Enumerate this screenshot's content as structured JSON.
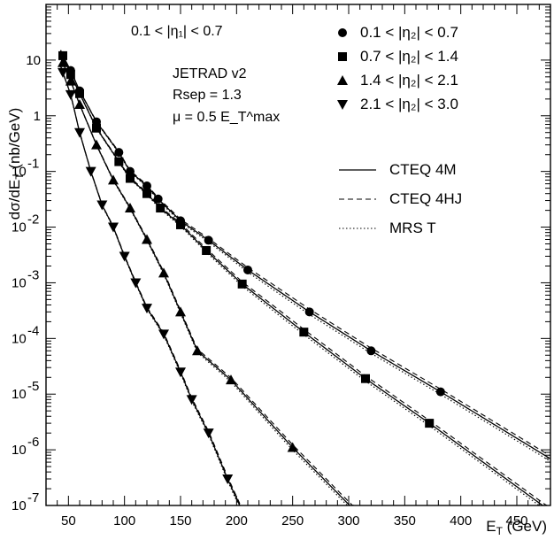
{
  "chart_data": {
    "type": "scatter",
    "title": "",
    "xlabel": "E_T (GeV)",
    "ylabel": "dσ/dE_T (nb/GeV)",
    "xlim": [
      30,
      480
    ],
    "ylim": [
      1e-07,
      100
    ],
    "yscale": "log",
    "grid": false,
    "x_ticks": [
      50,
      100,
      150,
      200,
      250,
      300,
      350,
      400,
      450
    ],
    "y_ticks": [
      {
        "value": 1e-07,
        "base": "10",
        "exp": "-7"
      },
      {
        "value": 1e-06,
        "base": "10",
        "exp": "-6"
      },
      {
        "value": 1e-05,
        "base": "10",
        "exp": "-5"
      },
      {
        "value": 0.0001,
        "base": "10",
        "exp": "-4"
      },
      {
        "value": 0.001,
        "base": "10",
        "exp": "-3"
      },
      {
        "value": 0.01,
        "base": "10",
        "exp": "-2"
      },
      {
        "value": 0.1,
        "base": "10",
        "exp": "-1"
      },
      {
        "value": 1,
        "base": "1",
        "exp": ""
      },
      {
        "value": 10,
        "base": "10",
        "exp": ""
      }
    ],
    "annotations": {
      "eta1_range": "0.1 < |η₁| < 0.7",
      "program": "JETRAD v2",
      "rsep": "Rsep = 1.3",
      "scale": "μ = 0.5 E_T^max"
    },
    "legend_position": "top-right",
    "series": [
      {
        "name": "0.1 < |η₂| < 0.7",
        "marker": "circle",
        "x": [
          45,
          52,
          60,
          75,
          95,
          105,
          120,
          130,
          150,
          175,
          210,
          265,
          320,
          382
        ],
        "y": [
          12,
          6.5,
          2.8,
          0.78,
          0.22,
          0.1,
          0.055,
          0.032,
          0.013,
          0.0058,
          0.0017,
          0.0003,
          6e-05,
          1.1e-05
        ]
      },
      {
        "name": "0.7 < |η₂| < 1.4",
        "marker": "square",
        "x": [
          45,
          52,
          60,
          75,
          95,
          105,
          120,
          132,
          150,
          173,
          205,
          260,
          315,
          372
        ],
        "y": [
          12,
          5.5,
          2.5,
          0.6,
          0.15,
          0.075,
          0.04,
          0.022,
          0.011,
          0.0038,
          0.00095,
          0.00013,
          1.9e-05,
          3e-06
        ]
      },
      {
        "name": "1.4 < |η₂| < 2.1",
        "marker": "triangle-up",
        "x": [
          45,
          52,
          60,
          75,
          90,
          105,
          120,
          135,
          150,
          165,
          195,
          250
        ],
        "y": [
          9,
          4.2,
          1.6,
          0.3,
          0.07,
          0.022,
          0.006,
          0.0015,
          0.0003,
          6e-05,
          1.8e-05,
          1.1e-06
        ]
      },
      {
        "name": "2.1 < |η₂| < 3.0",
        "marker": "triangle-down",
        "x": [
          45,
          52,
          60,
          70,
          80,
          90,
          100,
          110,
          120,
          135,
          150,
          160,
          175,
          192
        ],
        "y": [
          6,
          2.4,
          0.5,
          0.1,
          0.025,
          0.01,
          0.003,
          0.001,
          0.00035,
          0.00012,
          2.5e-05,
          8e-06,
          2e-06,
          3e-07
        ]
      }
    ],
    "theory_curves": [
      {
        "name": "CTEQ 4M",
        "style": "solid"
      },
      {
        "name": "CTEQ 4HJ",
        "style": "dashed"
      },
      {
        "name": "MRS T",
        "style": "dotted"
      }
    ]
  }
}
